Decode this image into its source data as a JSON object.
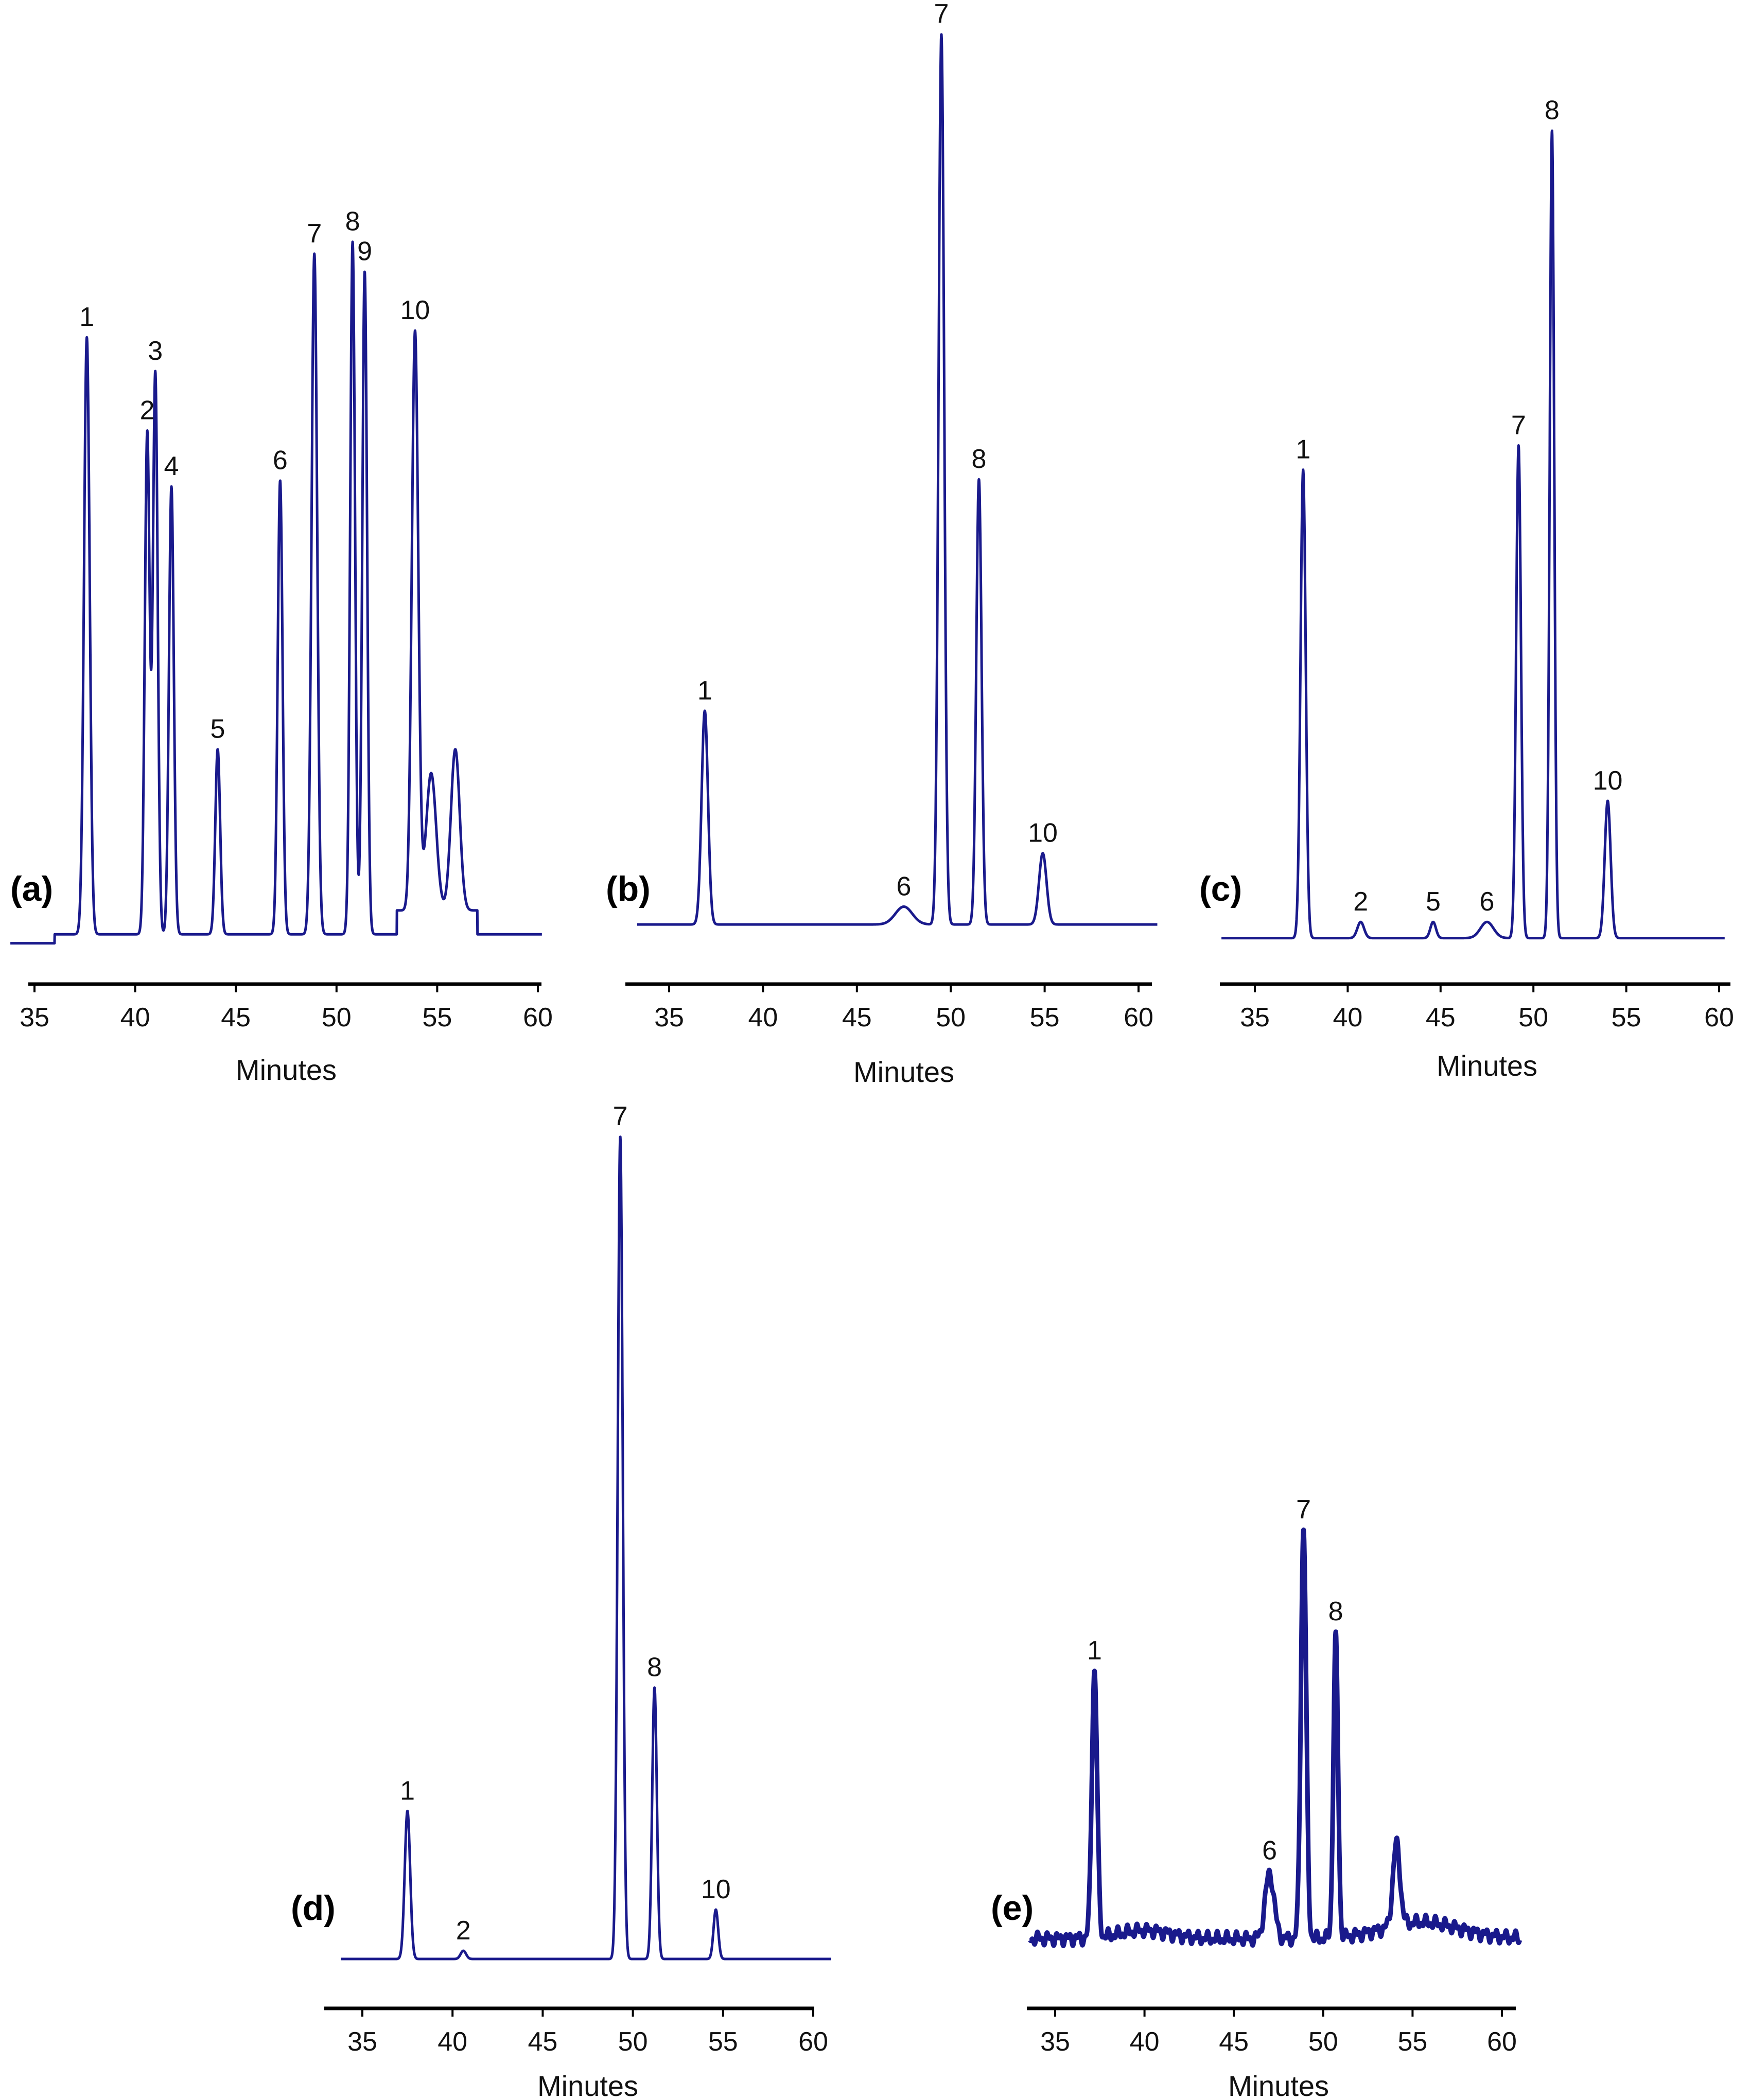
{
  "chart_data": [
    {
      "panel": "(a)",
      "type": "line",
      "xlabel": "Minutes",
      "xlim": [
        33.8,
        60.2
      ],
      "xticks": [
        35,
        40,
        45,
        50,
        55,
        60
      ],
      "ylim": [
        0,
        100
      ],
      "baseline": 3,
      "peaks": [
        {
          "label": "1",
          "x": 37.6,
          "height": 100,
          "width": 0.14
        },
        {
          "label": "2",
          "x": 40.6,
          "height": 84,
          "width": 0.12
        },
        {
          "label": "3",
          "x": 41.0,
          "height": 94,
          "width": 0.12
        },
        {
          "label": "4",
          "x": 41.8,
          "height": 75,
          "width": 0.12
        },
        {
          "label": "5",
          "x": 44.1,
          "height": 31,
          "width": 0.12
        },
        {
          "label": "6",
          "x": 47.2,
          "height": 76,
          "width": 0.12
        },
        {
          "label": "7",
          "x": 48.9,
          "height": 114,
          "width": 0.14
        },
        {
          "label": "8",
          "x": 50.8,
          "height": 116,
          "width": 0.12
        },
        {
          "label": "9",
          "x": 51.4,
          "height": 111,
          "width": 0.12
        },
        {
          "label": "10",
          "x": 53.9,
          "height": 97,
          "width": 0.16
        },
        {
          "label": "",
          "x": 54.7,
          "height": 23,
          "width": 0.25
        },
        {
          "label": "",
          "x": 55.9,
          "height": 27,
          "width": 0.22
        }
      ]
    },
    {
      "panel": "(b)",
      "type": "line",
      "xlabel": "Minutes",
      "xlim": [
        33.3,
        61.0
      ],
      "xticks": [
        35,
        40,
        45,
        50,
        55,
        60
      ],
      "ylim": [
        0,
        100
      ],
      "baseline": 3,
      "peaks": [
        {
          "label": "1",
          "x": 36.9,
          "height": 24,
          "width": 0.17
        },
        {
          "label": "6",
          "x": 47.5,
          "height": 2,
          "width": 0.45
        },
        {
          "label": "7",
          "x": 49.5,
          "height": 100,
          "width": 0.15
        },
        {
          "label": "8",
          "x": 51.5,
          "height": 50,
          "width": 0.14
        },
        {
          "label": "10",
          "x": 54.9,
          "height": 8,
          "width": 0.2
        }
      ]
    },
    {
      "panel": "(c)",
      "type": "line",
      "xlabel": "Minutes",
      "xlim": [
        33.2,
        60.3
      ],
      "xticks": [
        35,
        40,
        45,
        50,
        55,
        60
      ],
      "ylim": [
        0,
        100
      ],
      "baseline": 2,
      "peaks": [
        {
          "label": "1",
          "x": 37.6,
          "height": 58,
          "width": 0.14
        },
        {
          "label": "2",
          "x": 40.7,
          "height": 2,
          "width": 0.18
        },
        {
          "label": "5",
          "x": 44.6,
          "height": 2,
          "width": 0.15
        },
        {
          "label": "6",
          "x": 47.5,
          "height": 2,
          "width": 0.35
        },
        {
          "label": "7",
          "x": 49.2,
          "height": 61,
          "width": 0.13
        },
        {
          "label": "8",
          "x": 51.0,
          "height": 100,
          "width": 0.12
        },
        {
          "label": "10",
          "x": 54.0,
          "height": 17,
          "width": 0.16
        }
      ]
    },
    {
      "panel": "(d)",
      "type": "line",
      "xlabel": "Minutes",
      "xlim": [
        33.8,
        61.0
      ],
      "xticks": [
        35,
        40,
        45,
        50,
        55,
        60
      ],
      "ylim": [
        0,
        100
      ],
      "baseline": 2,
      "peaks": [
        {
          "label": "1",
          "x": 37.5,
          "height": 18,
          "width": 0.15
        },
        {
          "label": "2",
          "x": 40.6,
          "height": 1,
          "width": 0.15
        },
        {
          "label": "7",
          "x": 49.3,
          "height": 100,
          "width": 0.14
        },
        {
          "label": "8",
          "x": 51.2,
          "height": 33,
          "width": 0.13
        },
        {
          "label": "10",
          "x": 54.6,
          "height": 6,
          "width": 0.13
        }
      ]
    },
    {
      "panel": "(e)",
      "type": "line",
      "xlabel": "Minutes",
      "xlim": [
        33.6,
        61.0
      ],
      "xticks": [
        35,
        40,
        45,
        50,
        55,
        60
      ],
      "ylim": [
        0,
        100
      ],
      "baseline": 8,
      "peaks": [
        {
          "label": "1",
          "x": 37.2,
          "height": 65,
          "width": 0.15
        },
        {
          "label": "6",
          "x": 47.0,
          "height": 16,
          "width": 0.25
        },
        {
          "label": "7",
          "x": 48.9,
          "height": 100,
          "width": 0.15
        },
        {
          "label": "8",
          "x": 50.7,
          "height": 73,
          "width": 0.13
        },
        {
          "label": "",
          "x": 54.1,
          "height": 20,
          "width": 0.2
        }
      ]
    }
  ]
}
